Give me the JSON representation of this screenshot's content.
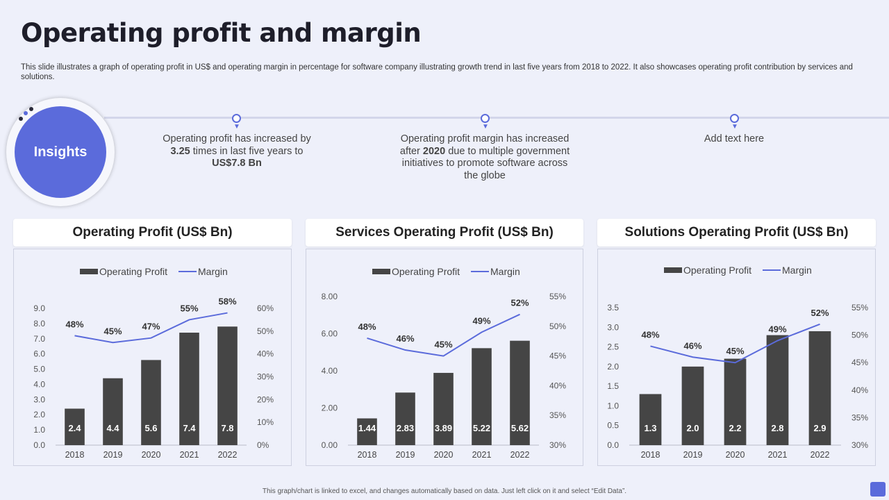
{
  "title": "Operating profit and margin",
  "description": "This slide illustrates a graph of operating profit in US$ and operating margin in percentage for software company illustrating growth trend in last five years from 2018 to 2022. It also showcases operating profit contribution by services and solutions.",
  "insights": {
    "label": "Insights",
    "items": [
      {
        "pre": "Operating profit has increased by",
        "bold1": "3.25",
        "mid": " times in last five years to",
        "bold2": "US$7.8 Bn"
      },
      {
        "pre": "Operating profit margin has increased after ",
        "bold1": "2020",
        "mid": " due to multiple government initiatives  to promote software across the globe",
        "bold2": ""
      },
      {
        "text": "Add text here"
      }
    ]
  },
  "colors": {
    "bar": "#454545",
    "line": "#5B6BDB",
    "accent": "#5B6BDB"
  },
  "chart_data": [
    {
      "type": "bar",
      "title": "Operating Profit (US$ Bn)",
      "categories": [
        "2018",
        "2019",
        "2020",
        "2021",
        "2022"
      ],
      "series": [
        {
          "name": "Operating Profit",
          "values": [
            2.4,
            4.4,
            5.6,
            7.4,
            7.8
          ],
          "labels": [
            "2.4",
            "4.4",
            "5.6",
            "7.4",
            "7.8"
          ]
        },
        {
          "name": "Margin",
          "type": "line",
          "axis": "right",
          "values": [
            48,
            45,
            47,
            55,
            58
          ],
          "labels": [
            "48%",
            "45%",
            "47%",
            "55%",
            "58%"
          ]
        }
      ],
      "ylim": [
        0,
        9
      ],
      "yticks": [
        "0.0",
        "1.0",
        "2.0",
        "3.0",
        "4.0",
        "5.0",
        "6.0",
        "7.0",
        "8.0",
        "9.0"
      ],
      "y2lim": [
        0,
        60
      ],
      "y2ticks": [
        "0%",
        "10%",
        "20%",
        "30%",
        "40%",
        "50%",
        "60%"
      ],
      "legend": [
        "Operating Profit",
        "Margin"
      ]
    },
    {
      "type": "bar",
      "title": "Services Operating Profit (US$ Bn)",
      "categories": [
        "2018",
        "2019",
        "2020",
        "2021",
        "2022"
      ],
      "series": [
        {
          "name": "Operating Profit",
          "values": [
            1.44,
            2.83,
            3.89,
            5.22,
            5.62
          ],
          "labels": [
            "1.44",
            "2.83",
            "3.89",
            "5.22",
            "5.62"
          ]
        },
        {
          "name": "Margin",
          "type": "line",
          "axis": "right",
          "values": [
            48,
            46,
            45,
            49,
            52
          ],
          "labels": [
            "48%",
            "46%",
            "45%",
            "49%",
            "52%"
          ]
        }
      ],
      "ylim": [
        0,
        8
      ],
      "yticks": [
        "0.00",
        "2.00",
        "4.00",
        "6.00",
        "8.00"
      ],
      "y2lim": [
        30,
        55
      ],
      "y2ticks": [
        "30%",
        "35%",
        "40%",
        "45%",
        "50%",
        "55%"
      ],
      "legend": [
        "Operating Profit",
        "Margin"
      ]
    },
    {
      "type": "bar",
      "title": "Solutions Operating Profit (US$ Bn)",
      "categories": [
        "2018",
        "2019",
        "2020",
        "2021",
        "2022"
      ],
      "series": [
        {
          "name": "Operating Profit",
          "values": [
            1.3,
            2.0,
            2.2,
            2.8,
            2.9
          ],
          "labels": [
            "1.3",
            "2.0",
            "2.2",
            "2.8",
            "2.9"
          ]
        },
        {
          "name": "Margin",
          "type": "line",
          "axis": "right",
          "values": [
            48,
            46,
            45,
            49,
            52
          ],
          "labels": [
            "48%",
            "46%",
            "45%",
            "49%",
            "52%"
          ]
        }
      ],
      "ylim": [
        0,
        3.5
      ],
      "yticks": [
        "0.0",
        "0.5",
        "1.0",
        "1.5",
        "2.0",
        "2.5",
        "3.0",
        "3.5"
      ],
      "y2lim": [
        30,
        55
      ],
      "y2ticks": [
        "30%",
        "35%",
        "40%",
        "45%",
        "50%",
        "55%"
      ],
      "legend": [
        "Operating Profit",
        "Margin"
      ]
    }
  ],
  "footer": "This graph/chart is linked to excel, and changes automatically based on data. Just left click on it and select “Edit Data”."
}
